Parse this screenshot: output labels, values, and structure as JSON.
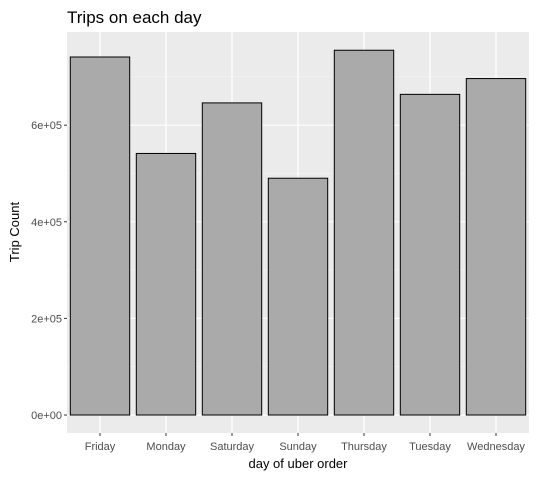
{
  "chart_data": {
    "type": "bar",
    "title": "Trips on each day",
    "xlabel": "day of uber order",
    "ylabel": "Trip Count",
    "categories": [
      "Friday",
      "Monday",
      "Saturday",
      "Sunday",
      "Thursday",
      "Tuesday",
      "Wednesday"
    ],
    "values": [
      741139,
      541472,
      646114,
      490180,
      755145,
      663789,
      696488
    ],
    "ylim": [
      0,
      792895
    ],
    "yticks": [
      0,
      200000,
      400000,
      600000
    ],
    "ytick_labels": [
      "0e+00",
      "2e+05",
      "4e+05",
      "6e+05"
    ],
    "grid": true,
    "legend": "none",
    "colors": {
      "panel": "#ebebeb",
      "grid_major": "#ffffff",
      "bar_fill": "#aaaaaa",
      "bar_outline": "#000000",
      "tick": "#333333",
      "tick_label": "#4d4d4d"
    }
  }
}
